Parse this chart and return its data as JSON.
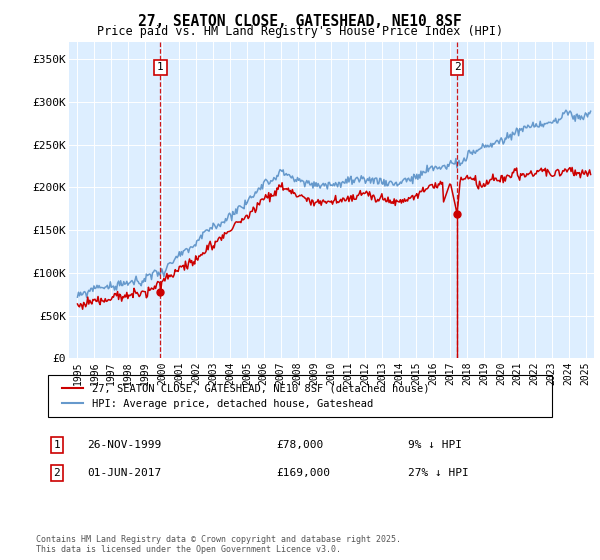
{
  "title": "27, SEATON CLOSE, GATESHEAD, NE10 8SF",
  "subtitle": "Price paid vs. HM Land Registry's House Price Index (HPI)",
  "ylabel_ticks": [
    "£0",
    "£50K",
    "£100K",
    "£150K",
    "£200K",
    "£250K",
    "£300K",
    "£350K"
  ],
  "ytick_vals": [
    0,
    50000,
    100000,
    150000,
    200000,
    250000,
    300000,
    350000
  ],
  "ylim": [
    0,
    370000
  ],
  "xlim_start": 1994.5,
  "xlim_end": 2025.5,
  "hpi_color": "#6699cc",
  "price_color": "#cc0000",
  "bg_color": "#ddeeff",
  "ann1_x": 1999.9,
  "ann2_x": 2017.42,
  "ann1_dot_y": 78000,
  "ann2_dot_y": 169000,
  "annotation1": {
    "date": "26-NOV-1999",
    "price": "£78,000",
    "hpi_pct": "9% ↓ HPI"
  },
  "annotation2": {
    "date": "01-JUN-2017",
    "price": "£169,000",
    "hpi_pct": "27% ↓ HPI"
  },
  "legend_label1": "27, SEATON CLOSE, GATESHEAD, NE10 8SF (detached house)",
  "legend_label2": "HPI: Average price, detached house, Gateshead",
  "footer": "Contains HM Land Registry data © Crown copyright and database right 2025.\nThis data is licensed under the Open Government Licence v3.0."
}
